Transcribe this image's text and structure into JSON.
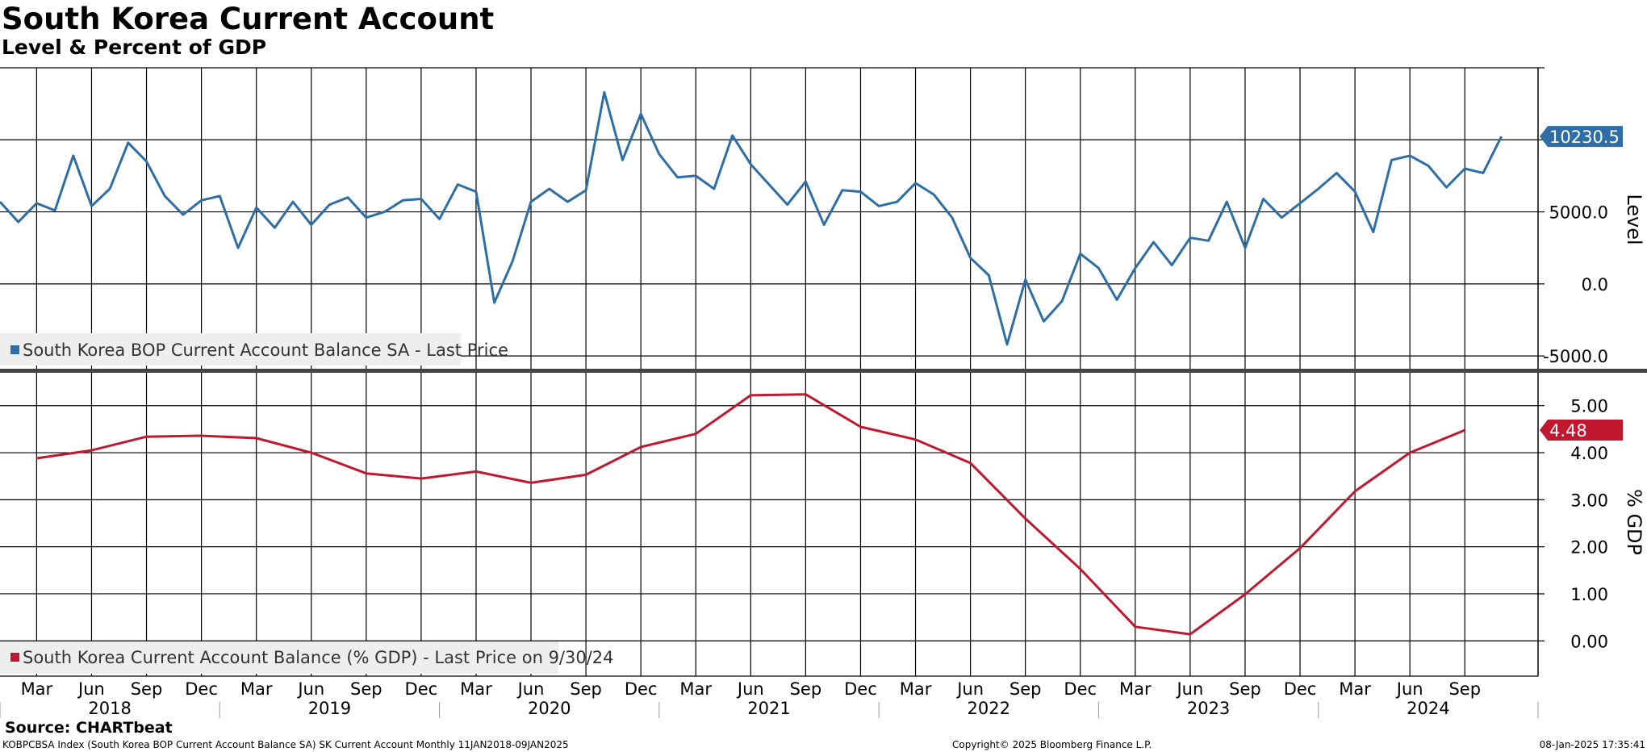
{
  "title": "South Korea Current Account",
  "subtitle": "Level & Percent of GDP",
  "footer": {
    "source": "Source: CHARTbeat",
    "ticker_line": "KOBPCBSA Index (South Korea BOP Current Account Balance SA) SK Current Account  Monthly 11JAN2018-09JAN2025",
    "copyright": "Copyright© 2025 Bloomberg Finance L.P.",
    "timestamp": "08-Jan-2025 17:35:41"
  },
  "colors": {
    "level": "#2e6ea6",
    "gdp": "#c0182f",
    "grid": "#000000",
    "divider": "#444444"
  },
  "x_axis": {
    "month_ticks": [
      "Mar",
      "Jun",
      "Sep",
      "Dec",
      "Mar",
      "Jun",
      "Sep",
      "Dec",
      "Mar",
      "Jun",
      "Sep",
      "Dec",
      "Mar",
      "Jun",
      "Sep",
      "Dec",
      "Mar",
      "Jun",
      "Sep",
      "Dec",
      "Mar",
      "Jun",
      "Sep",
      "Dec",
      "Mar",
      "Jun",
      "Sep"
    ],
    "years": [
      "2018",
      "2019",
      "2020",
      "2021",
      "2022",
      "2023",
      "2024"
    ]
  },
  "chart_data": [
    {
      "type": "line",
      "panel": "top",
      "ylabel": "Level",
      "ylim": [
        -6000,
        15000
      ],
      "yticks": [
        "5000.0",
        "0.0",
        "-5000.0"
      ],
      "grid": true,
      "legend_position": "bottom-left",
      "last_value_label": "10230.5",
      "series": [
        {
          "name": "South Korea BOP Current Account Balance SA - Last Price",
          "x_start": "2018-01",
          "frequency": "monthly",
          "values": [
            5700,
            4300,
            5600,
            5100,
            8900,
            5400,
            6600,
            9800,
            8500,
            6100,
            4800,
            5800,
            6100,
            2500,
            5300,
            3900,
            5700,
            4100,
            5500,
            6000,
            4600,
            5000,
            5800,
            5900,
            4500,
            6900,
            6400,
            -1300,
            1600,
            5700,
            6600,
            5700,
            6500,
            13300,
            8600,
            11800,
            9000,
            7400,
            7500,
            6600,
            10300,
            8300,
            6900,
            5500,
            7100,
            4100,
            6500,
            6400,
            5400,
            5700,
            7000,
            6200,
            4600,
            1800,
            600,
            -4200,
            300,
            -2600,
            -1200,
            2100,
            1100,
            -1100,
            1100,
            2900,
            1300,
            3200,
            3000,
            5700,
            2500,
            5900,
            4600,
            5600,
            6600,
            7700,
            6400,
            3600,
            8600,
            8900,
            8200,
            6700,
            8000,
            7700,
            10230.5
          ]
        }
      ]
    },
    {
      "type": "line",
      "panel": "bottom",
      "ylabel": "% GDP",
      "ylim": [
        -0.75,
        5.75
      ],
      "yticks": [
        "5.00",
        "4.00",
        "3.00",
        "2.00",
        "1.00",
        "0.00"
      ],
      "grid": true,
      "legend_position": "bottom-left",
      "last_value_label": "4.48",
      "series": [
        {
          "name": "South Korea Current Account Balance (% GDP) - Last Price on 9/30/24",
          "x": [
            "2018-03",
            "2018-06",
            "2018-09",
            "2018-12",
            "2019-03",
            "2019-06",
            "2019-09",
            "2019-12",
            "2020-03",
            "2020-06",
            "2020-09",
            "2020-12",
            "2021-03",
            "2021-06",
            "2021-09",
            "2021-12",
            "2022-03",
            "2022-06",
            "2022-09",
            "2022-12",
            "2023-03",
            "2023-06",
            "2023-09",
            "2023-12",
            "2024-03",
            "2024-06",
            "2024-09"
          ],
          "values": [
            3.88,
            4.05,
            4.34,
            4.36,
            4.31,
            4.0,
            3.56,
            3.45,
            3.6,
            3.36,
            3.53,
            4.12,
            4.4,
            5.22,
            5.24,
            4.55,
            4.28,
            3.78,
            2.6,
            1.53,
            0.3,
            0.14,
            0.99,
            1.97,
            3.18,
            4.0,
            4.48
          ]
        }
      ]
    }
  ]
}
